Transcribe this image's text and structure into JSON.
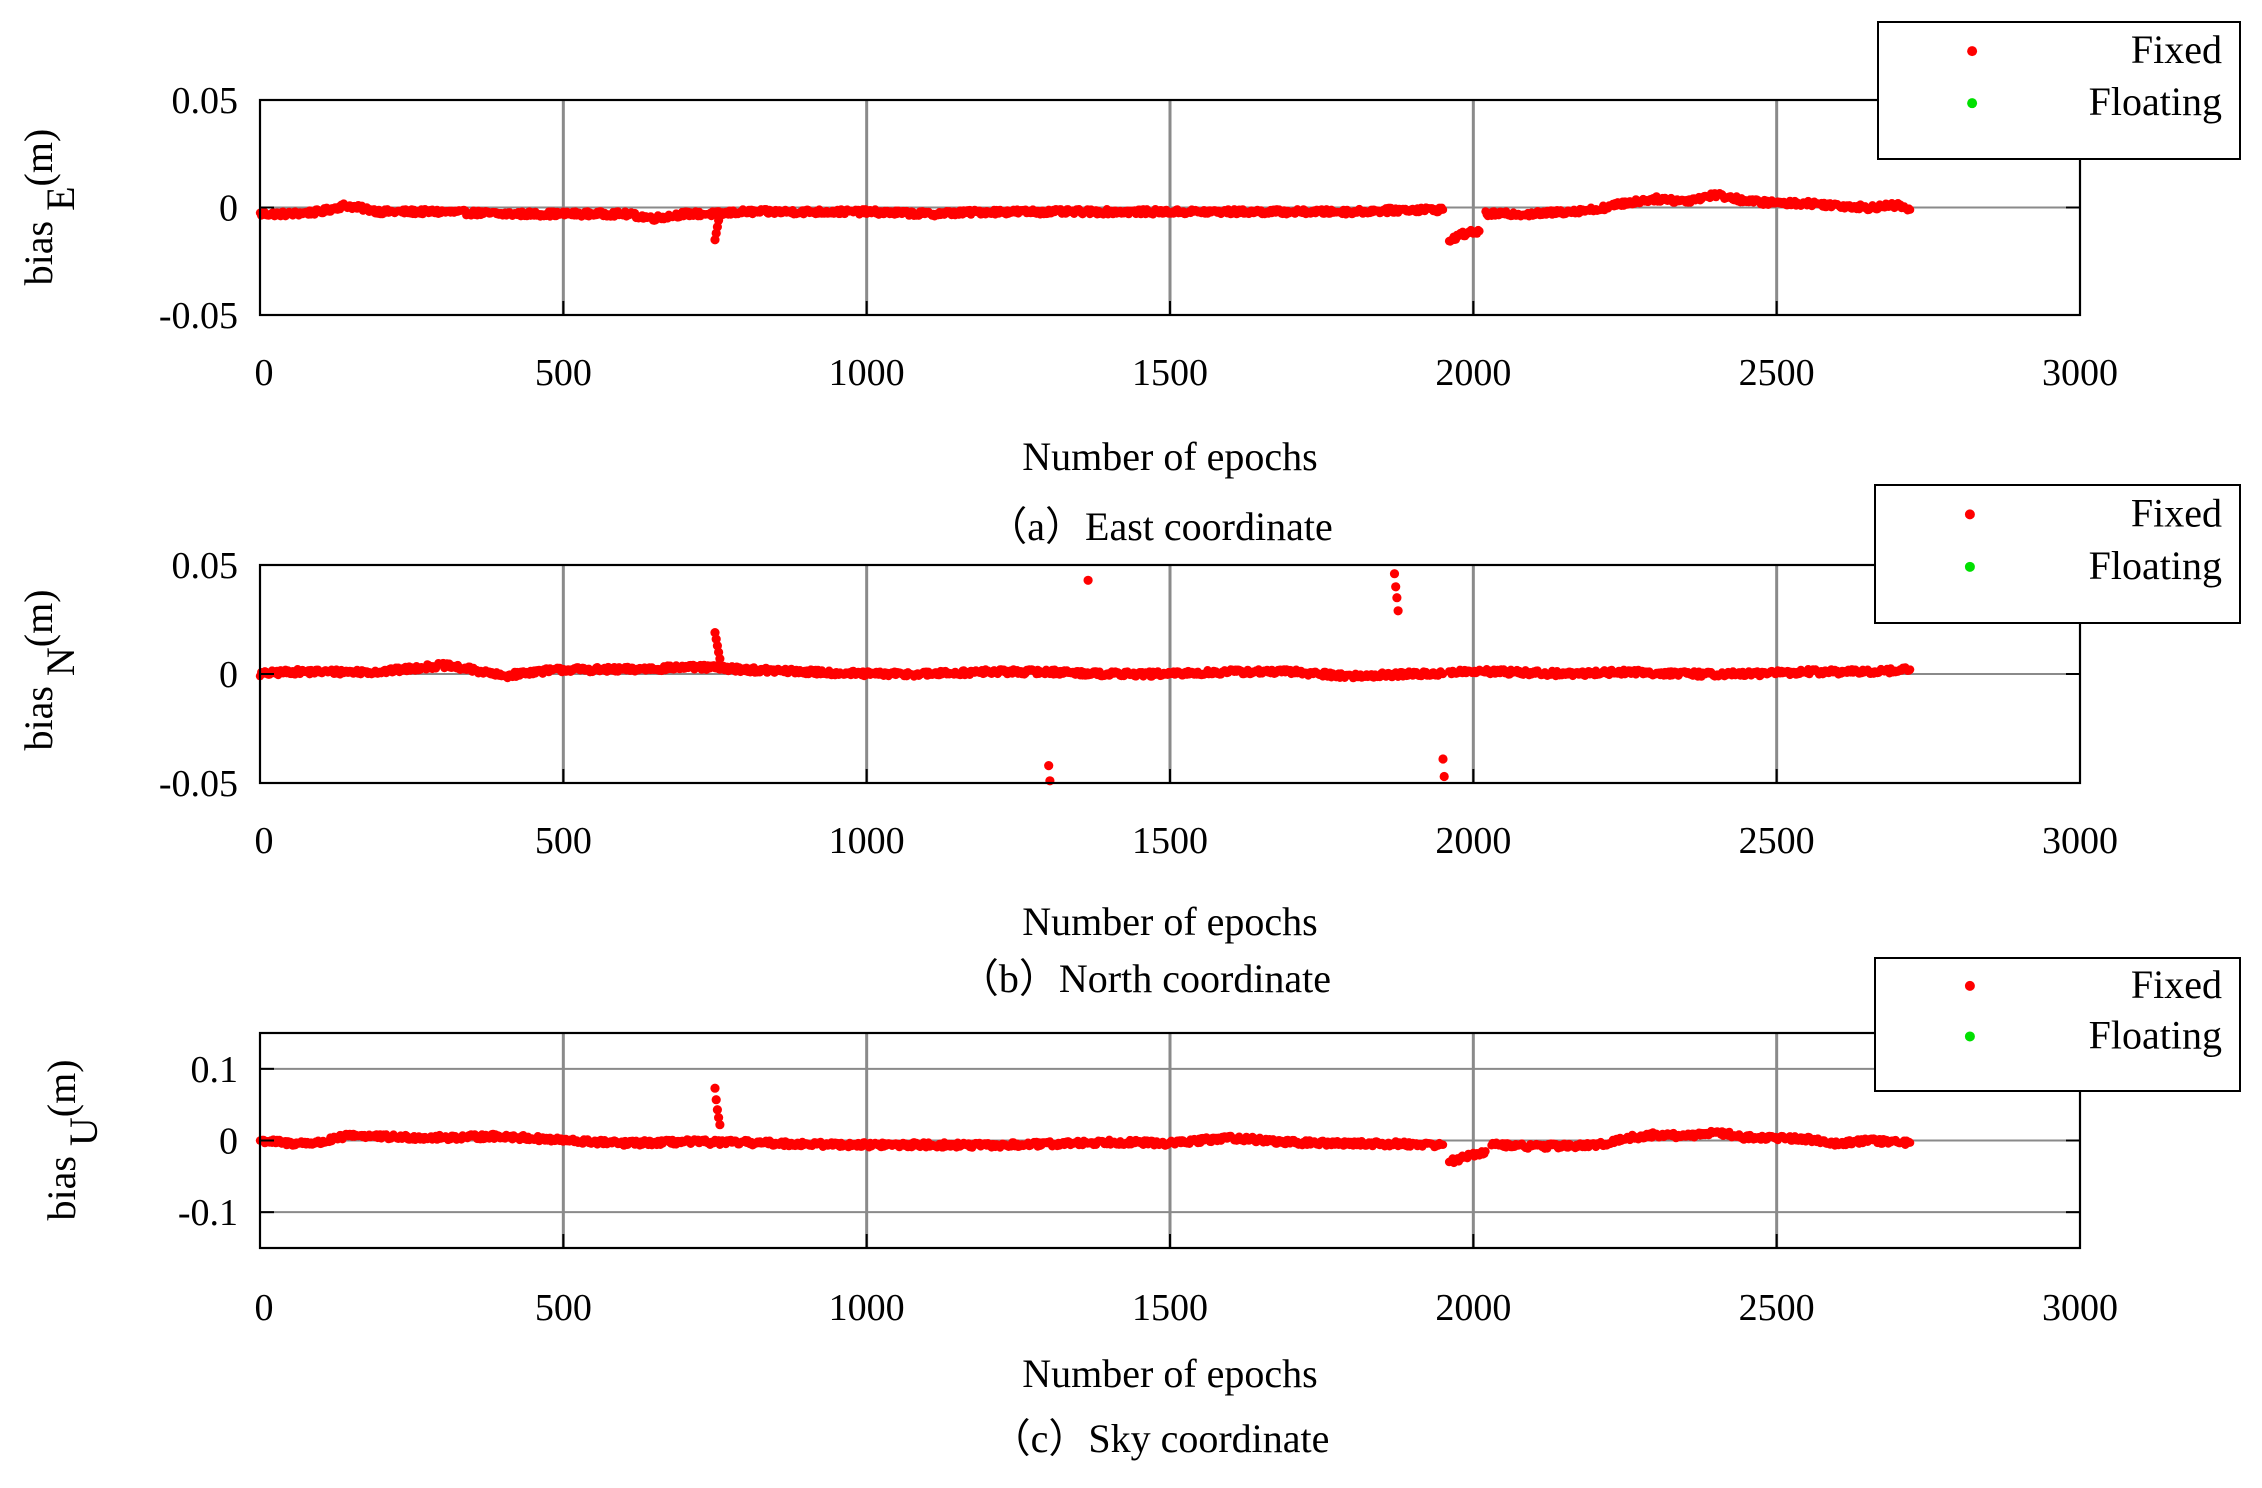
{
  "colors": {
    "fixed": "#ff0000",
    "floating": "#00e000",
    "grid": "#8a8a8a",
    "axis": "#000000"
  },
  "legend_labels": [
    "Fixed",
    "Floating"
  ],
  "chart_data": [
    {
      "type": "scatter",
      "id": "east",
      "caption": "（a）East coordinate",
      "ylabel_main": "bias",
      "ylabel_sub": "E",
      "ylabel_unit": "(m)",
      "xlabel": "Number of epochs",
      "xlim": [
        0,
        3000
      ],
      "ylim": [
        -0.05,
        0.05
      ],
      "xticks": [
        0,
        500,
        1000,
        1500,
        2000,
        2500,
        3000
      ],
      "xtick_labels": [
        "0",
        "500",
        "1000",
        "1500",
        "2000",
        "2500",
        "3000"
      ],
      "yticks": [
        0.05,
        0,
        -0.05
      ],
      "ytick_labels": [
        "0.05",
        "0",
        "-0.05"
      ],
      "grid": true,
      "legend": "top-right",
      "series": [
        {
          "name": "Fixed",
          "color": "#ff0000",
          "segments": [
            {
              "x": [
                0,
                50,
                100,
                140,
                200,
                300,
                400,
                500,
                600,
                650,
                700,
                750,
                800,
                900,
                1000,
                1100,
                1200,
                1300,
                1400,
                1500,
                1600,
                1700,
                1800,
                1900,
                1950
              ],
              "y": [
                -0.003,
                -0.003,
                -0.002,
                0.001,
                -0.002,
                -0.002,
                -0.003,
                -0.003,
                -0.003,
                -0.005,
                -0.003,
                -0.003,
                -0.002,
                -0.002,
                -0.002,
                -0.003,
                -0.002,
                -0.002,
                -0.002,
                -0.002,
                -0.002,
                -0.002,
                -0.002,
                -0.001,
                -0.001
              ]
            },
            {
              "x": [
                1960,
                1975,
                1990,
                2010
              ],
              "y": [
                -0.016,
                -0.013,
                -0.012,
                -0.011
              ]
            },
            {
              "x": [
                2020,
                2100,
                2200,
                2250,
                2300,
                2350,
                2400,
                2450,
                2500,
                2550,
                2600,
                2650,
                2700,
                2720
              ],
              "y": [
                -0.003,
                -0.003,
                -0.001,
                0.002,
                0.004,
                0.003,
                0.006,
                0.003,
                0.002,
                0.002,
                0.001,
                0.0,
                0.001,
                -0.001
              ]
            }
          ],
          "outliers": {
            "x": [
              750,
              752,
              754,
              756,
              758
            ],
            "y": [
              -0.015,
              -0.012,
              -0.009,
              -0.006,
              -0.004
            ]
          }
        },
        {
          "name": "Floating",
          "color": "#00e000",
          "segments": [],
          "outliers": {
            "x": [],
            "y": []
          }
        }
      ]
    },
    {
      "type": "scatter",
      "id": "north",
      "caption": "（b）North coordinate",
      "ylabel_main": "bias",
      "ylabel_sub": "N",
      "ylabel_unit": "(m)",
      "xlabel": "Number of epochs",
      "xlim": [
        0,
        3000
      ],
      "ylim": [
        -0.05,
        0.05
      ],
      "xticks": [
        0,
        500,
        1000,
        1500,
        2000,
        2500,
        3000
      ],
      "xtick_labels": [
        "0",
        "500",
        "1000",
        "1500",
        "2000",
        "2500",
        "3000"
      ],
      "yticks": [
        0.05,
        0,
        -0.05
      ],
      "ytick_labels": [
        "0.05",
        "0",
        "-0.05"
      ],
      "grid": true,
      "legend": "top-right",
      "series": [
        {
          "name": "Fixed",
          "color": "#ff0000",
          "segments": [
            {
              "x": [
                0,
                50,
                100,
                200,
                300,
                350,
                400,
                450,
                500,
                600,
                700,
                750,
                800,
                900,
                1000,
                1100,
                1200,
                1300,
                1400,
                1500,
                1600,
                1700,
                1800,
                1900,
                1950
              ],
              "y": [
                0.0,
                0.001,
                0.001,
                0.001,
                0.004,
                0.002,
                -0.001,
                0.001,
                0.002,
                0.002,
                0.003,
                0.003,
                0.002,
                0.001,
                0.0,
                0.0,
                0.001,
                0.001,
                0.0,
                0.0,
                0.001,
                0.001,
                -0.001,
                0.0,
                0.0
              ]
            },
            {
              "x": [
                1960,
                2050,
                2150,
                2250,
                2350,
                2450,
                2550,
                2650,
                2720
              ],
              "y": [
                0.001,
                0.001,
                0.0,
                0.001,
                0.0,
                0.0,
                0.001,
                0.001,
                0.002
              ]
            }
          ],
          "outliers": {
            "x": [
              750,
              752,
              754,
              756,
              758,
              1300,
              1302,
              1365,
              1870,
              1872,
              1874,
              1876,
              1950,
              1952
            ],
            "y": [
              0.019,
              0.016,
              0.013,
              0.01,
              0.007,
              -0.042,
              -0.049,
              0.043,
              0.046,
              0.04,
              0.035,
              0.029,
              -0.039,
              -0.047
            ]
          }
        },
        {
          "name": "Floating",
          "color": "#00e000",
          "segments": [],
          "outliers": {
            "x": [],
            "y": []
          }
        }
      ]
    },
    {
      "type": "scatter",
      "id": "up",
      "caption": "（c）Sky coordinate",
      "ylabel_main": "bias",
      "ylabel_sub": "U",
      "ylabel_unit": "(m)",
      "xlabel": "Number of epochs",
      "xlim": [
        0,
        3000
      ],
      "ylim": [
        -0.15,
        0.15
      ],
      "xticks": [
        0,
        500,
        1000,
        1500,
        2000,
        2500,
        3000
      ],
      "xtick_labels": [
        "0",
        "500",
        "1000",
        "1500",
        "2000",
        "2500",
        "3000"
      ],
      "yticks": [
        0.1,
        0,
        -0.1
      ],
      "ytick_labels": [
        "0.1",
        "0",
        "-0.1"
      ],
      "grid": true,
      "legend": "top-right",
      "series": [
        {
          "name": "Fixed",
          "color": "#ff0000",
          "segments": [
            {
              "x": [
                0,
                50,
                100,
                150,
                200,
                300,
                400,
                500,
                600,
                700,
                800,
                900,
                1000,
                1100,
                1200,
                1300,
                1400,
                1500,
                1600,
                1700,
                1800,
                1900,
                1950
              ],
              "y": [
                0.0,
                -0.004,
                -0.003,
                0.008,
                0.005,
                0.004,
                0.006,
                0.0,
                -0.004,
                -0.002,
                -0.003,
                -0.005,
                -0.006,
                -0.006,
                -0.007,
                -0.005,
                -0.002,
                -0.004,
                0.004,
                -0.003,
                -0.004,
                -0.005,
                -0.006
              ]
            },
            {
              "x": [
                1960,
                1980,
                2000,
                2020
              ],
              "y": [
                -0.03,
                -0.025,
                -0.02,
                -0.015
              ]
            },
            {
              "x": [
                2030,
                2100,
                2200,
                2260,
                2300,
                2350,
                2400,
                2450,
                2500,
                2550,
                2600,
                2650,
                2700,
                2720
              ],
              "y": [
                -0.006,
                -0.008,
                -0.007,
                0.004,
                0.008,
                0.006,
                0.012,
                0.004,
                0.004,
                0.002,
                -0.004,
                0.0,
                -0.003,
                -0.003
              ]
            }
          ],
          "outliers": {
            "x": [
              750,
              752,
              754,
              756,
              758
            ],
            "y": [
              0.073,
              0.057,
              0.043,
              0.032,
              0.022
            ]
          }
        },
        {
          "name": "Floating",
          "color": "#00e000",
          "segments": [],
          "outliers": {
            "x": [],
            "y": []
          }
        }
      ]
    }
  ]
}
